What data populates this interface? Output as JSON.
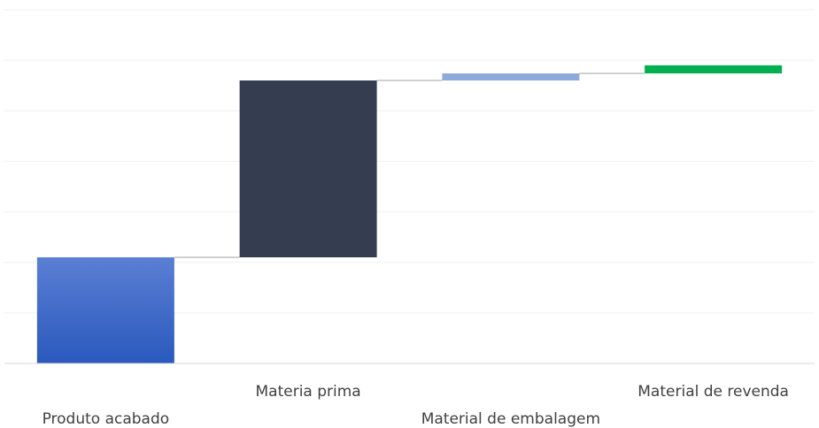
{
  "chart_data": {
    "type": "bar",
    "subtype": "waterfall",
    "title": "",
    "xlabel": "",
    "ylabel": "",
    "categories": [
      "Produto acabado",
      "Materia prima",
      "Material de embalagem",
      "Material de revenda"
    ],
    "values": [
      21,
      35,
      1.4,
      1.6
    ],
    "ylim": [
      0,
      70
    ],
    "grid": true,
    "legend": "none",
    "colors": {
      "Produto acabado": [
        "#5b7fd4",
        "#2a59bd"
      ],
      "Materia prima": "#343e50",
      "Material de embalagem": "#8eaadb",
      "Material de revenda": "#00b050",
      "grid": "#f0f0f0",
      "connector": "#d0d0d0",
      "axis": "#d9d9d9"
    }
  }
}
